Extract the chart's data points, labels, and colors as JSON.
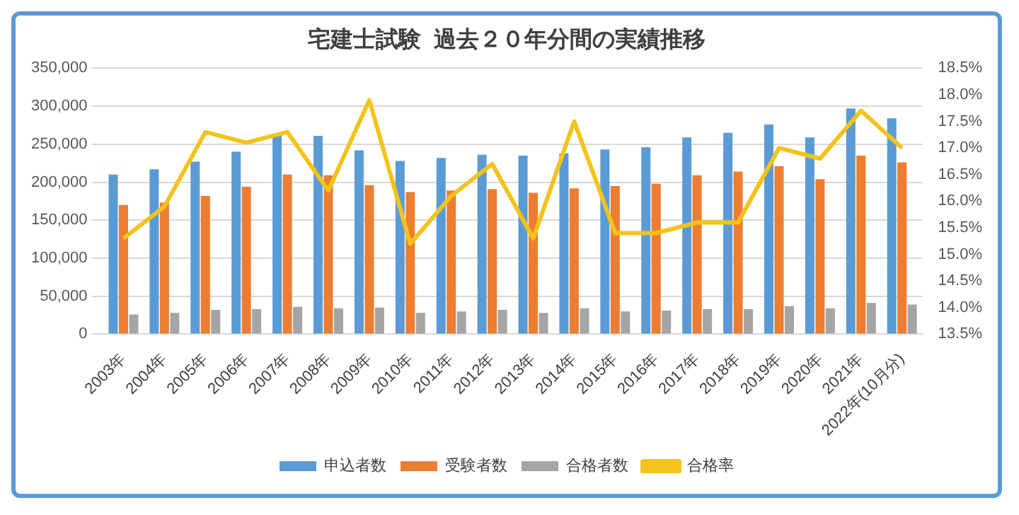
{
  "chart_data": {
    "type": "bar",
    "title": "宅建士試験  過去２０年分間の実績推移",
    "categories": [
      "2003年",
      "2004年",
      "2005年",
      "2006年",
      "2007年",
      "2008年",
      "2009年",
      "2010年",
      "2011年",
      "2012年",
      "2013年",
      "2014年",
      "2015年",
      "2016年",
      "2017年",
      "2018年",
      "2019年",
      "2020年",
      "2021年",
      "2022年(10月分)"
    ],
    "series": [
      {
        "name": "申込者数",
        "color": "#5b9bd5",
        "values": [
          210000,
          217000,
          227000,
          240000,
          261000,
          261000,
          242000,
          228000,
          232000,
          236000,
          235000,
          238000,
          243000,
          246000,
          259000,
          265000,
          276000,
          259000,
          297000,
          284000
        ]
      },
      {
        "name": "受験者数",
        "color": "#ed7d31",
        "values": [
          170000,
          173000,
          182000,
          194000,
          210000,
          209000,
          196000,
          187000,
          189000,
          191000,
          186000,
          192000,
          195000,
          198000,
          209000,
          214000,
          221000,
          204000,
          235000,
          226000
        ]
      },
      {
        "name": "合格者数",
        "color": "#a5a5a5",
        "values": [
          26000,
          28000,
          32000,
          33000,
          36000,
          34000,
          35000,
          28000,
          30000,
          32000,
          28000,
          34000,
          30000,
          31000,
          33000,
          33000,
          37000,
          34000,
          41000,
          39000
        ]
      },
      {
        "name": "合格率",
        "color": "#f4c31b",
        "type": "line",
        "axis": "y2",
        "values": [
          15.3,
          15.9,
          17.3,
          17.1,
          17.3,
          16.2,
          17.9,
          15.2,
          16.1,
          16.7,
          15.3,
          17.5,
          15.4,
          15.4,
          15.6,
          15.6,
          17.0,
          16.8,
          17.7,
          17.0
        ]
      }
    ],
    "ylim": [
      0,
      350000
    ],
    "yticks": [
      {
        "value": 0,
        "label": "0"
      },
      {
        "value": 50000,
        "label": "50,000"
      },
      {
        "value": 100000,
        "label": "100,000"
      },
      {
        "value": 150000,
        "label": "150,000"
      },
      {
        "value": 200000,
        "label": "200,000"
      },
      {
        "value": 250000,
        "label": "250,000"
      },
      {
        "value": 300000,
        "label": "300,000"
      },
      {
        "value": 350000,
        "label": "350,000"
      }
    ],
    "y2lim": [
      13.5,
      18.5
    ],
    "y2ticks": [
      {
        "value": 13.5,
        "label": "13.5%"
      },
      {
        "value": 14,
        "label": "14.0%"
      },
      {
        "value": 14.5,
        "label": "14.5%"
      },
      {
        "value": 15,
        "label": "15.0%"
      },
      {
        "value": 15.5,
        "label": "15.5%"
      },
      {
        "value": 16,
        "label": "16.0%"
      },
      {
        "value": 16.5,
        "label": "16.5%"
      },
      {
        "value": 17,
        "label": "17.0%"
      },
      {
        "value": 17.5,
        "label": "17.5%"
      },
      {
        "value": 18,
        "label": "18.0%"
      },
      {
        "value": 18.5,
        "label": "18.5%"
      }
    ],
    "grid": "y",
    "legend": "bottom",
    "marker": "none",
    "line_style": "solid"
  }
}
